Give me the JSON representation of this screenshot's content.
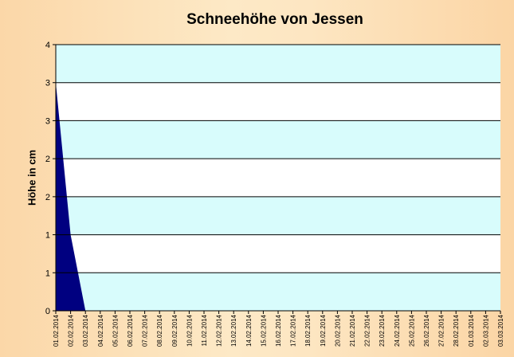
{
  "chart_data": {
    "type": "area",
    "title": "Schneehöhe von Jessen",
    "ylabel": "Höhe in cm",
    "xlabel": "",
    "x": [
      "01.02.2014",
      "02.02.2014",
      "03.02.2014",
      "04.02.2014",
      "05.02.2014",
      "06.02.2014",
      "07.02.2014",
      "08.02.2014",
      "09.02.2014",
      "10.02.2014",
      "11.02.2014",
      "12.02.2014",
      "13.02.2014",
      "14.02.2014",
      "15.02.2014",
      "16.02.2014",
      "17.02.2014",
      "18.02.2014",
      "19.02.2014",
      "20.02.2014",
      "21.02.2014",
      "22.02.2014",
      "23.02.2014",
      "24.02.2014",
      "25.02.2014",
      "26.02.2014",
      "27.02.2014",
      "28.02.2014",
      "01.03.2014",
      "02.03.2014",
      "03.03.2014"
    ],
    "values": [
      3.0,
      1.0,
      0,
      0,
      0,
      0,
      0,
      0,
      0,
      0,
      0,
      0,
      0,
      0,
      0,
      0,
      0,
      0,
      0,
      0,
      0,
      0,
      0,
      0,
      0,
      0,
      0,
      0,
      0,
      0,
      0
    ],
    "ylim": [
      0,
      3.5
    ],
    "ytick_labels": [
      "0",
      "1",
      "1",
      "2",
      "2",
      "3",
      "3",
      "4"
    ],
    "grid": true,
    "colors": {
      "area": "#000080",
      "plot_band_light": "#d8fcfc",
      "plot_band_white": "#ffffff"
    }
  }
}
